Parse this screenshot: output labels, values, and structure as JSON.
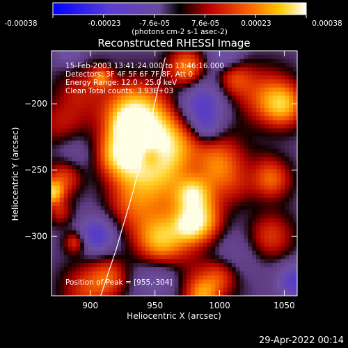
{
  "colorbar": {
    "ticks": [
      "-0.00038",
      "-0.00023",
      "-7.6e-05",
      "7.6e-05",
      "0.00023",
      "0.00038"
    ],
    "unit_label": "(photons cm-2 s-1 asec-2)",
    "range": [
      -0.00038,
      0.00038
    ]
  },
  "chart_data": {
    "type": "heatmap",
    "title": "Reconstructed RHESSI Image",
    "xlabel": "Heliocentric X (arcsec)",
    "ylabel": "Heliocentric Y (arcsec)",
    "xlim": [
      870,
      1060
    ],
    "ylim": [
      -345,
      -160
    ],
    "x_ticks": [
      900,
      950,
      1000,
      1050
    ],
    "y_ticks": [
      -200,
      -250,
      -300
    ],
    "annotations": [
      "15-Feb-2003 13:41:24.000 to 13:46:16.000",
      "Detectors: 3F 4F 5F 6F 7F 8F, Att 0",
      "Energy Range: 12.0 - 25.0 keV",
      "Clean    Total counts: 3.93E+03"
    ],
    "peak_label": "Position of Peak = [955,-304]",
    "peak": [
      955,
      -304
    ],
    "limb_curve": [
      [
        908,
        -345
      ],
      [
        920,
        -310
      ],
      [
        932,
        -270
      ],
      [
        943,
        -230
      ],
      [
        952,
        -190
      ],
      [
        958,
        -165
      ]
    ]
  },
  "footer": {
    "timestamp": "29-Apr-2022 00:14"
  }
}
